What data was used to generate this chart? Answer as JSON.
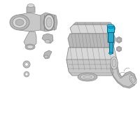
{
  "bg_color": "#ffffff",
  "highlight_color": "#29a8c8",
  "part_color": "#c8c8c8",
  "part_color2": "#b8b8b8",
  "part_color3": "#d8d8d8",
  "outline_color": "#888888",
  "dark_color": "#666666",
  "fig_size": [
    2.0,
    2.0
  ],
  "dpi": 100
}
